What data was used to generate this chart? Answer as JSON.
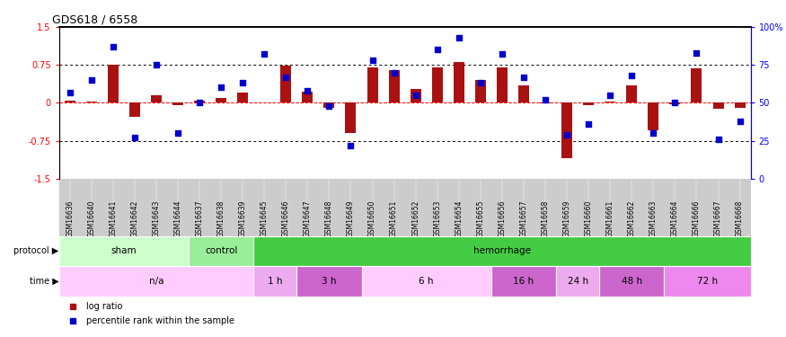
{
  "title": "GDS618 / 6558",
  "samples": [
    "GSM16636",
    "GSM16640",
    "GSM16641",
    "GSM16642",
    "GSM16643",
    "GSM16644",
    "GSM16637",
    "GSM16638",
    "GSM16639",
    "GSM16645",
    "GSM16646",
    "GSM16647",
    "GSM16648",
    "GSM16649",
    "GSM16650",
    "GSM16651",
    "GSM16652",
    "GSM16653",
    "GSM16654",
    "GSM16655",
    "GSM16656",
    "GSM16657",
    "GSM16658",
    "GSM16659",
    "GSM16660",
    "GSM16661",
    "GSM16662",
    "GSM16663",
    "GSM16664",
    "GSM16666",
    "GSM16667",
    "GSM16668"
  ],
  "log_ratio": [
    0.04,
    0.03,
    0.76,
    -0.28,
    0.15,
    -0.05,
    0.05,
    0.1,
    0.2,
    0.0,
    0.73,
    0.22,
    -0.1,
    -0.6,
    0.7,
    0.65,
    0.27,
    0.7,
    0.8,
    0.45,
    0.7,
    0.35,
    -0.02,
    -1.1,
    -0.05,
    0.02,
    0.35,
    -0.55,
    -0.03,
    0.68,
    -0.12,
    -0.1
  ],
  "percentile": [
    57,
    65,
    87,
    27,
    75,
    30,
    50,
    60,
    63,
    82,
    67,
    58,
    48,
    22,
    78,
    70,
    55,
    85,
    93,
    63,
    82,
    67,
    52,
    29,
    36,
    55,
    68,
    30,
    50,
    83,
    26,
    38
  ],
  "protocol_groups": [
    {
      "label": "sham",
      "start": 0,
      "end": 6,
      "color": "#ccffcc"
    },
    {
      "label": "control",
      "start": 6,
      "end": 9,
      "color": "#99ee99"
    },
    {
      "label": "hemorrhage",
      "start": 9,
      "end": 32,
      "color": "#44cc44"
    }
  ],
  "time_groups": [
    {
      "label": "n/a",
      "start": 0,
      "end": 9,
      "color": "#ffccff"
    },
    {
      "label": "1 h",
      "start": 9,
      "end": 11,
      "color": "#eeaaee"
    },
    {
      "label": "3 h",
      "start": 11,
      "end": 14,
      "color": "#cc66cc"
    },
    {
      "label": "6 h",
      "start": 14,
      "end": 20,
      "color": "#ffccff"
    },
    {
      "label": "16 h",
      "start": 20,
      "end": 23,
      "color": "#cc66cc"
    },
    {
      "label": "24 h",
      "start": 23,
      "end": 25,
      "color": "#eeaaee"
    },
    {
      "label": "48 h",
      "start": 25,
      "end": 28,
      "color": "#cc66cc"
    },
    {
      "label": "72 h",
      "start": 28,
      "end": 32,
      "color": "#ee88ee"
    }
  ],
  "bar_color": "#aa1111",
  "dot_color": "#0000cc",
  "ylim": [
    -1.5,
    1.5
  ],
  "yticks_left": [
    -1.5,
    -0.75,
    0.0,
    0.75,
    1.5
  ],
  "yticks_right": [
    0,
    25,
    50,
    75,
    100
  ],
  "ytick_labels_left": [
    "-1.5",
    "-0.75",
    "0",
    "0.75",
    "1.5"
  ],
  "ytick_labels_right": [
    "0",
    "25",
    "50",
    "75",
    "100%"
  ],
  "bar_width": 0.5,
  "xtick_bg_color": "#cccccc"
}
